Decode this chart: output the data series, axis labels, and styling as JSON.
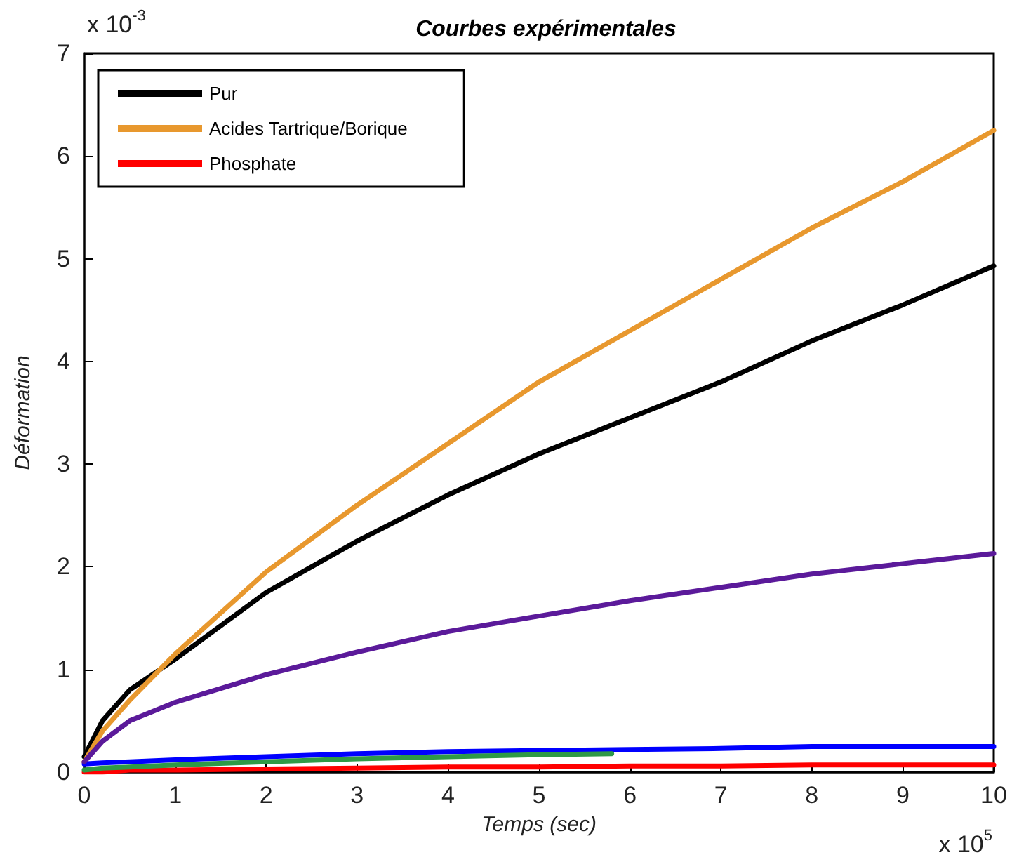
{
  "chart_data": {
    "type": "line",
    "title": "Courbes expérimentales",
    "xlabel": "Temps (sec)",
    "ylabel": "Déformation",
    "annotations": [
      "x 10$^{-3}$",
      "x 10$^{5}$"
    ],
    "x": [
      0,
      0.2,
      0.5,
      1,
      2,
      3,
      4,
      5,
      6,
      7,
      8,
      9,
      10
    ],
    "series": [
      {
        "name": "Pur",
        "color": "#000000",
        "values": [
          0.15,
          0.5,
          0.8,
          1.1,
          1.75,
          2.25,
          2.7,
          3.1,
          3.45,
          3.8,
          4.2,
          4.55,
          4.93
        ]
      },
      {
        "name": "Acides Tartrique/Borique",
        "color": "#e8982e",
        "values": [
          0.1,
          0.4,
          0.7,
          1.15,
          1.95,
          2.6,
          3.2,
          3.8,
          4.3,
          4.8,
          5.3,
          5.75,
          6.25
        ]
      },
      {
        "name": "Phosphate",
        "color": "#ff0000",
        "values": [
          0,
          0,
          0.02,
          0.02,
          0.03,
          0.04,
          0.05,
          0.05,
          0.06,
          0.06,
          0.07,
          0.07,
          0.07
        ]
      },
      {
        "color": "#0000ff",
        "values": [
          0.08,
          0.09,
          0.1,
          0.12,
          0.15,
          0.18,
          0.2,
          0.21,
          0.22,
          0.23,
          0.25,
          0.25,
          0.25
        ]
      },
      {
        "color": "#2e9a46",
        "x": [
          0,
          0.2,
          0.5,
          1,
          2,
          3,
          4,
          5,
          5.8
        ],
        "values": [
          0.02,
          0.04,
          0.05,
          0.07,
          0.1,
          0.13,
          0.15,
          0.17,
          0.18
        ]
      },
      {
        "color": "#5b1a9a",
        "values": [
          0.1,
          0.3,
          0.5,
          0.68,
          0.95,
          1.17,
          1.37,
          1.52,
          1.67,
          1.8,
          1.93,
          2.03,
          2.13
        ]
      }
    ],
    "xlim": [
      0,
      10
    ],
    "xticks": [
      0,
      1,
      2,
      3,
      4,
      5,
      6,
      7,
      8,
      9,
      10
    ],
    "ylim": [
      0,
      7
    ],
    "yticks": [
      0,
      1,
      2,
      3,
      4,
      5,
      6,
      7
    ],
    "grid": false,
    "legend": "top left",
    "marker": "none",
    "line_style": "solid"
  }
}
